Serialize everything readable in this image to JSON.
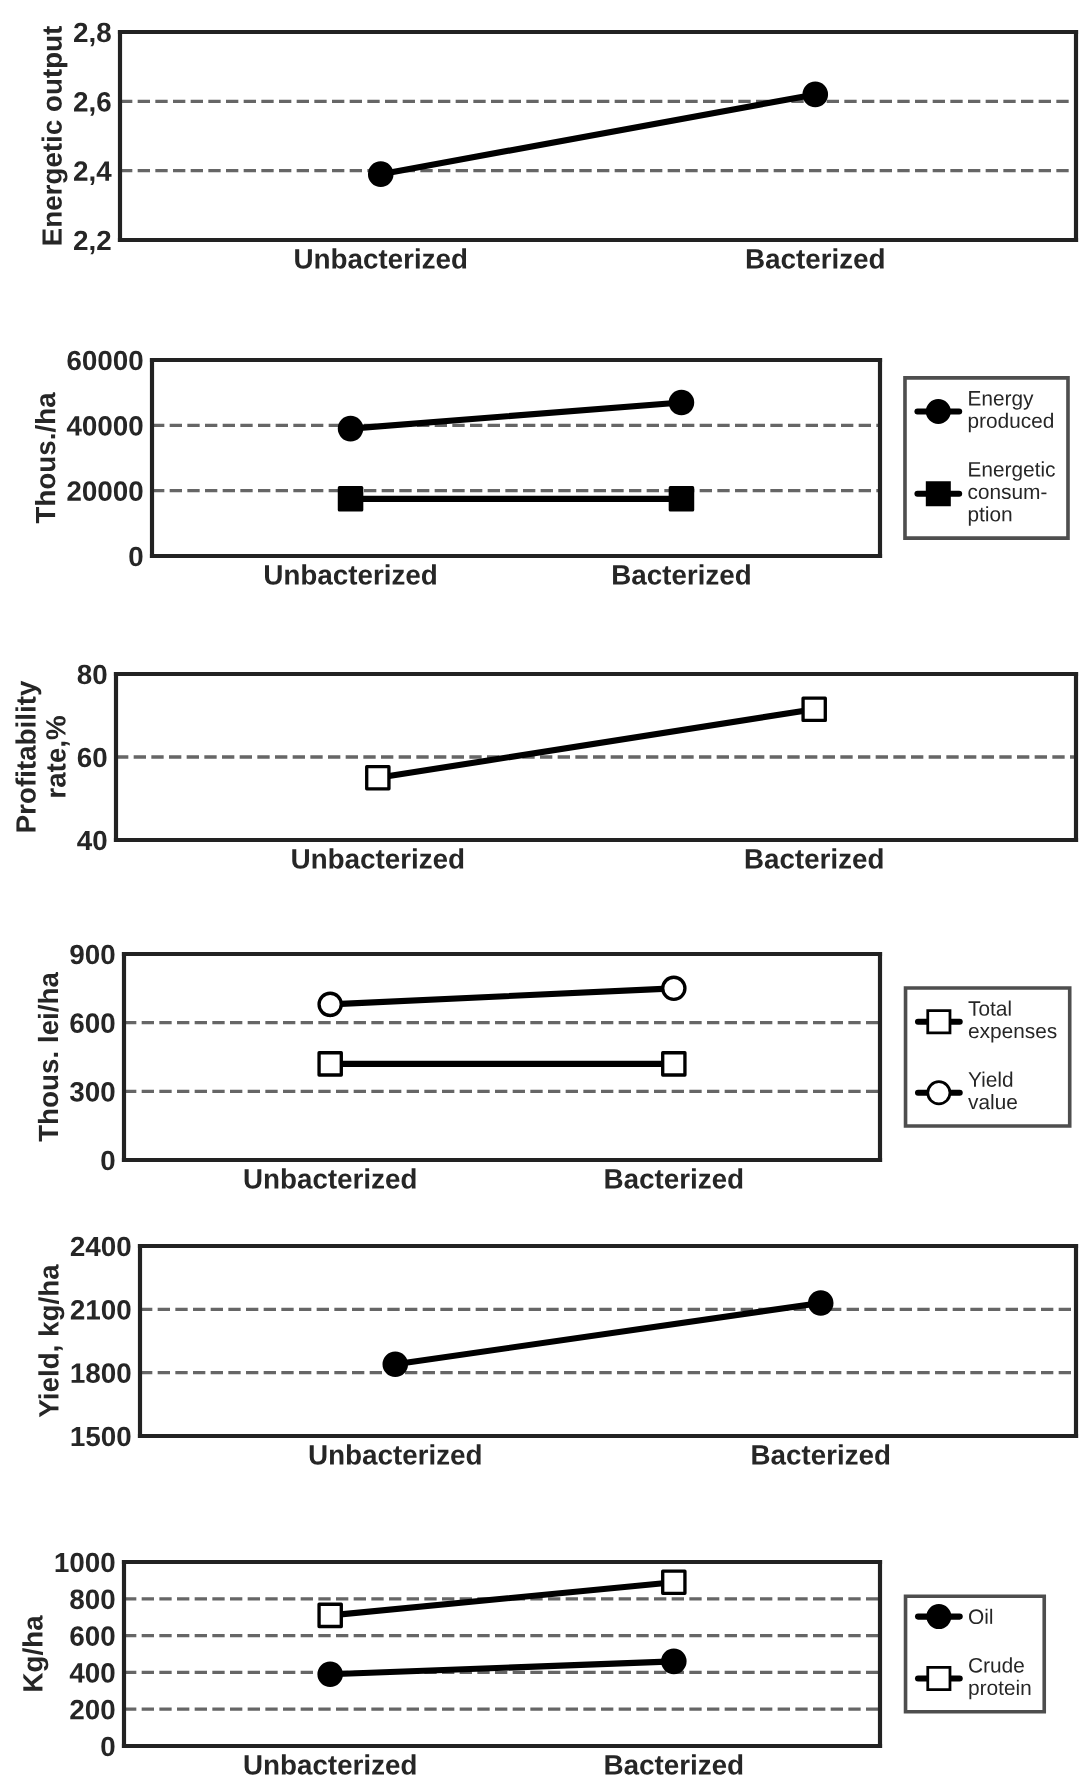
{
  "chart_data": [
    {
      "type": "line",
      "ylabel": "Energetic output",
      "categories": [
        "Unbacterized",
        "Bacterized"
      ],
      "ylim": [
        2.2,
        2.8
      ],
      "yticks": [
        {
          "value": 2.2,
          "label": "2,2"
        },
        {
          "value": 2.4,
          "label": "2,4"
        },
        {
          "value": 2.6,
          "label": "2,6"
        },
        {
          "value": 2.8,
          "label": "2,8"
        }
      ],
      "grid": "y",
      "marker": "circle",
      "series": [
        {
          "color": "#000000",
          "values": [
            2.39,
            2.62
          ]
        }
      ]
    },
    {
      "type": "line",
      "ylabel": "Thous./ha",
      "categories": [
        "Unbacterized",
        "Bacterized"
      ],
      "ylim": [
        0,
        60000
      ],
      "yticks": [
        0,
        20000,
        40000,
        60000
      ],
      "grid": "y",
      "legend": "right",
      "series": [
        {
          "name": "Energy\nproduced",
          "color": "#000000",
          "marker": "circle",
          "values": [
            39000,
            47000
          ]
        },
        {
          "name": "Energetic\nconsum-\nption",
          "color": "#000000",
          "marker": "square",
          "values": [
            17500,
            17500
          ]
        }
      ]
    },
    {
      "type": "line",
      "ylabel": "Profitability\nrate,%",
      "categories": [
        "Unbacterized",
        "Bacterized"
      ],
      "ylim": [
        40,
        80
      ],
      "yticks": [
        40,
        60,
        80
      ],
      "grid": "y",
      "marker": "square",
      "series": [
        {
          "color": "#000000",
          "colors": [
            "#ffffff",
            "#ffffff"
          ],
          "values": [
            55,
            71.5
          ]
        }
      ]
    },
    {
      "type": "line",
      "ylabel": "Thous. lei/ha",
      "categories": [
        "Unbacterized",
        "Bacterized"
      ],
      "ylim": [
        0,
        900
      ],
      "yticks": [
        0,
        300,
        600,
        900
      ],
      "grid": "y",
      "legend": "right",
      "series": [
        {
          "name": "Total\nexpenses",
          "color": "#000000",
          "marker": "square",
          "colors": [
            "#ffffff",
            "#ffffff"
          ],
          "values": [
            420,
            420
          ]
        },
        {
          "name": "Yield\nvalue",
          "color": "#000000",
          "marker": "circle",
          "colors": [
            "#ffffff",
            "#ffffff"
          ],
          "values": [
            680,
            750
          ]
        }
      ]
    },
    {
      "type": "line",
      "ylabel": "Yield, kg/ha",
      "categories": [
        "Unbacterized",
        "Bacterized"
      ],
      "ylim": [
        1500,
        2400
      ],
      "yticks": [
        1500,
        1800,
        2100,
        2400
      ],
      "grid": "y",
      "marker": "circle",
      "series": [
        {
          "color": "#000000",
          "values": [
            1840,
            2130
          ]
        }
      ]
    },
    {
      "type": "line",
      "ylabel": "Kg/ha",
      "categories": [
        "Unbacterized",
        "Bacterized"
      ],
      "ylim": [
        0,
        1000
      ],
      "yticks": [
        0,
        200,
        400,
        600,
        800,
        1000
      ],
      "grid": "y",
      "legend": "right",
      "series": [
        {
          "name": "Oil",
          "color": "#000000",
          "marker": "circle",
          "values": [
            390,
            460
          ]
        },
        {
          "name": "Crude\nprotein",
          "color": "#000000",
          "marker": "square",
          "colors": [
            "#ffffff",
            "#ffffff"
          ],
          "values": [
            710,
            890
          ]
        }
      ]
    }
  ]
}
